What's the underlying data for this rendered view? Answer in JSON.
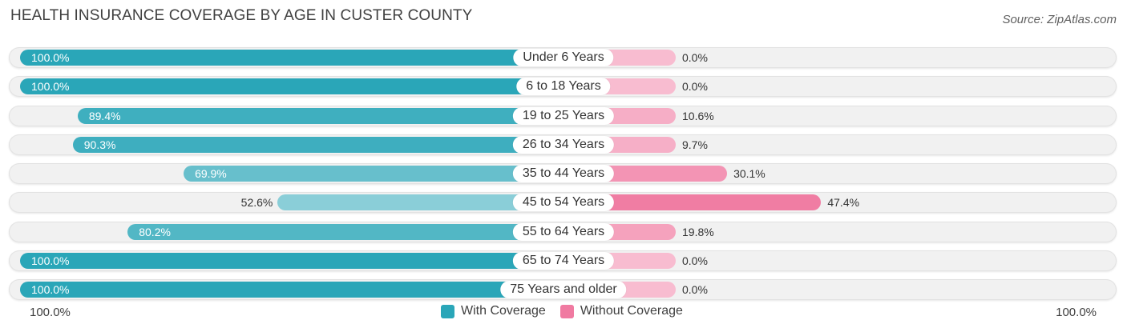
{
  "title": "HEALTH INSURANCE COVERAGE BY AGE IN CUSTER COUNTY",
  "source": "Source: ZipAtlas.com",
  "colors": {
    "with_strong": "#2aa6b8",
    "with_light": "#8fd0da",
    "without_strong": "#f07aa1",
    "without_light": "#f8bcd0"
  },
  "chart_data": {
    "type": "bar",
    "orientation": "horizontal-diverging",
    "title": "HEALTH INSURANCE COVERAGE BY AGE IN CUSTER COUNTY",
    "categories": [
      "Under 6 Years",
      "6 to 18 Years",
      "19 to 25 Years",
      "26 to 34 Years",
      "35 to 44 Years",
      "45 to 54 Years",
      "55 to 64 Years",
      "65 to 74 Years",
      "75 Years and older"
    ],
    "series": [
      {
        "name": "With Coverage",
        "values": [
          100.0,
          100.0,
          89.4,
          90.3,
          69.9,
          52.6,
          80.2,
          100.0,
          100.0
        ],
        "labels": [
          "100.0%",
          "100.0%",
          "89.4%",
          "90.3%",
          "69.9%",
          "52.6%",
          "80.2%",
          "100.0%",
          "100.0%"
        ]
      },
      {
        "name": "Without Coverage",
        "values": [
          0.0,
          0.0,
          10.6,
          9.7,
          30.1,
          47.4,
          19.8,
          0.0,
          0.0
        ],
        "labels": [
          "0.0%",
          "0.0%",
          "10.6%",
          "9.7%",
          "30.1%",
          "47.4%",
          "19.8%",
          "0.0%",
          "0.0%"
        ]
      }
    ],
    "xlim": [
      0,
      100
    ],
    "axis_left_label": "100.0%",
    "axis_right_label": "100.0%",
    "legend": [
      "With Coverage",
      "Without Coverage"
    ],
    "legend_position": "bottom-center"
  }
}
